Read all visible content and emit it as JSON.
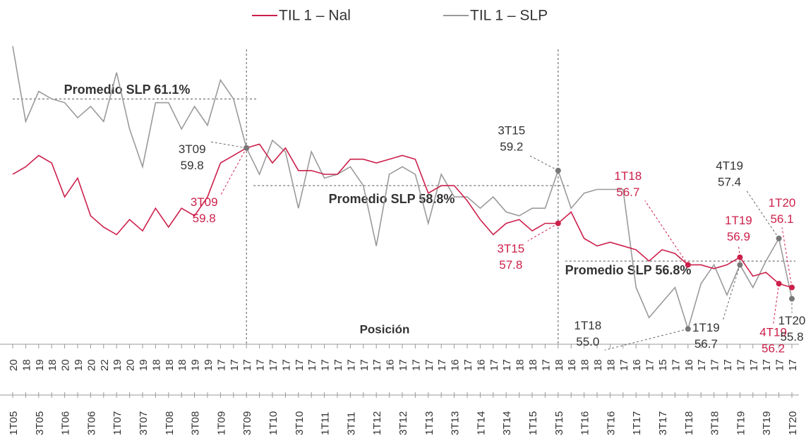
{
  "chart_data": {
    "type": "line",
    "categories": [
      "1T05",
      null,
      "3T05",
      null,
      "1T06",
      null,
      "3T06",
      null,
      "1T07",
      null,
      "3T07",
      null,
      "1T08",
      null,
      "3T08",
      null,
      "1T09",
      null,
      "3T09",
      null,
      "1T10",
      null,
      "3T10",
      null,
      "1T11",
      null,
      "3T11",
      null,
      "1T12",
      null,
      "3T12",
      null,
      "1T13",
      null,
      "3T13",
      null,
      "1T14",
      null,
      "3T14",
      null,
      "1T15",
      null,
      "3T15",
      null,
      "1T16",
      null,
      "3T16",
      null,
      "1T17",
      null,
      "3T17",
      null,
      "1T18",
      null,
      "3T18",
      null,
      "1T19",
      null,
      "3T19",
      null,
      "1T20"
    ],
    "series": [
      {
        "name": "TIL 1 – Nal",
        "color": "#cc1f4a",
        "values": [
          59.1,
          59.3,
          59.6,
          59.4,
          58.5,
          59.0,
          58.0,
          57.7,
          57.5,
          57.9,
          57.6,
          58.2,
          57.7,
          58.2,
          58.0,
          58.5,
          59.4,
          59.6,
          59.8,
          59.9,
          59.4,
          59.8,
          59.2,
          59.2,
          59.1,
          59.1,
          59.5,
          59.5,
          59.4,
          59.5,
          59.6,
          59.5,
          58.6,
          58.8,
          58.8,
          58.4,
          57.9,
          57.5,
          57.8,
          57.9,
          57.6,
          57.8,
          57.8,
          58.1,
          57.4,
          57.2,
          57.3,
          57.2,
          57.1,
          56.8,
          57.1,
          57.0,
          56.7,
          56.7,
          56.6,
          56.7,
          56.9,
          56.4,
          56.5,
          56.2,
          56.1
        ],
        "point_labels": [
          null,
          null,
          null,
          null,
          null,
          null,
          null,
          null,
          null,
          null,
          null,
          null,
          null,
          null,
          null,
          null,
          null,
          null,
          "3T09",
          null,
          null,
          null,
          null,
          null,
          null,
          null,
          null,
          null,
          null,
          null,
          null,
          null,
          null,
          null,
          null,
          null,
          null,
          null,
          null,
          null,
          null,
          null,
          "3T15",
          null,
          null,
          null,
          null,
          null,
          null,
          null,
          null,
          null,
          "1T18",
          null,
          null,
          null,
          "1T19",
          null,
          null,
          "4T19",
          "1T20"
        ],
        "value_labels": [
          null,
          null,
          null,
          null,
          null,
          null,
          null,
          null,
          null,
          null,
          null,
          null,
          null,
          null,
          null,
          null,
          null,
          null,
          "59.8",
          null,
          null,
          null,
          null,
          null,
          null,
          null,
          null,
          null,
          null,
          null,
          null,
          null,
          null,
          null,
          null,
          null,
          null,
          null,
          null,
          null,
          null,
          null,
          "57.8",
          null,
          null,
          null,
          null,
          null,
          null,
          null,
          null,
          null,
          "56.7",
          null,
          null,
          null,
          "56.9",
          null,
          null,
          "56.2",
          "56.1"
        ]
      },
      {
        "name": "TIL 1 – SLP",
        "color": "#9a9a9a",
        "values": [
          62.5,
          60.5,
          61.3,
          61.1,
          61.0,
          60.6,
          60.9,
          60.5,
          61.8,
          60.3,
          59.3,
          61.0,
          61.0,
          60.3,
          60.9,
          60.4,
          61.6,
          61.1,
          59.8,
          59.1,
          60.0,
          59.7,
          58.2,
          59.7,
          59.0,
          59.1,
          59.3,
          58.8,
          57.2,
          59.1,
          59.3,
          59.1,
          57.8,
          59.1,
          58.5,
          58.5,
          58.2,
          58.5,
          58.1,
          58.0,
          58.2,
          58.2,
          59.2,
          58.2,
          58.6,
          58.7,
          58.7,
          58.7,
          56.1,
          55.3,
          55.7,
          56.1,
          55.0,
          56.2,
          56.7,
          55.9,
          56.7,
          56.1,
          56.8,
          57.4,
          55.8
        ],
        "point_labels": [
          null,
          null,
          null,
          null,
          null,
          null,
          null,
          null,
          null,
          null,
          null,
          null,
          null,
          null,
          null,
          null,
          null,
          null,
          "3T09",
          null,
          null,
          null,
          null,
          null,
          null,
          null,
          null,
          null,
          null,
          null,
          null,
          null,
          null,
          null,
          null,
          null,
          null,
          null,
          null,
          null,
          null,
          null,
          "3T15",
          null,
          null,
          null,
          null,
          null,
          null,
          null,
          null,
          null,
          "1T18",
          null,
          null,
          null,
          "1T19",
          null,
          null,
          "4T19",
          "1T20"
        ],
        "value_labels": [
          null,
          null,
          null,
          null,
          null,
          null,
          null,
          null,
          null,
          null,
          null,
          null,
          null,
          null,
          null,
          null,
          null,
          null,
          "59.8",
          null,
          null,
          null,
          null,
          null,
          null,
          null,
          null,
          null,
          null,
          null,
          null,
          null,
          null,
          null,
          null,
          null,
          null,
          null,
          null,
          null,
          null,
          null,
          "59.2",
          null,
          null,
          null,
          null,
          null,
          null,
          null,
          null,
          null,
          "55.0",
          null,
          null,
          null,
          "56.7",
          null,
          null,
          "57.4",
          "55.8"
        ]
      }
    ],
    "ylim": [
      54.8,
      62.6
    ],
    "averages": [
      {
        "label": "Promedio SLP 61.1%",
        "value": 61.1,
        "x_range": [
          "1T05",
          "3T09"
        ]
      },
      {
        "label": "Promedio SLP 58.8%",
        "value": 58.8,
        "x_range": [
          "3T09",
          "3T15"
        ]
      },
      {
        "label": "Promedio SLP 56.8%",
        "value": 56.8,
        "x_range": [
          "3T15",
          "1T20"
        ]
      }
    ],
    "dividers": [
      "3T09",
      "3T15"
    ],
    "position_label": "Posición",
    "positions": [
      20,
      18,
      19,
      18,
      20,
      19,
      20,
      22,
      19,
      20,
      19,
      18,
      18,
      18,
      19,
      19,
      17,
      17,
      17,
      17,
      17,
      17,
      17,
      17,
      17,
      17,
      17,
      17,
      17,
      16,
      17,
      17,
      17,
      17,
      16,
      17,
      16,
      17,
      17,
      18,
      18,
      17,
      18,
      16,
      18,
      18,
      18,
      17,
      16,
      17,
      15,
      17,
      16,
      17,
      17,
      17,
      17,
      17,
      17,
      17,
      17
    ]
  }
}
